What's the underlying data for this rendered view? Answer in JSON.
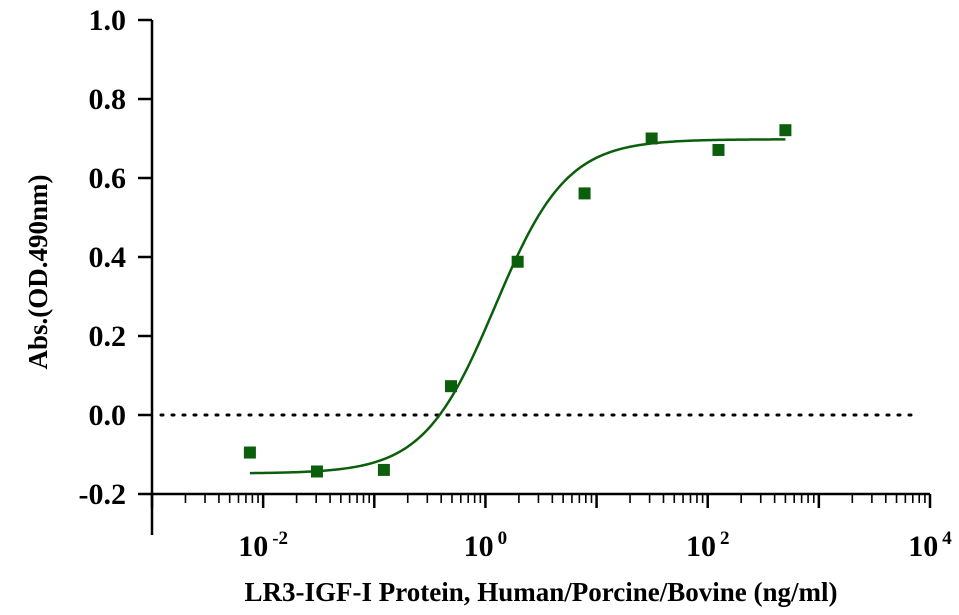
{
  "chart_data": {
    "type": "scatter",
    "xlabel": "LR3-IGF-I Protein, Human/Porcine/Bovine (ng/ml)",
    "ylabel": "Abs.(OD.490nm)",
    "xscale": "log10",
    "xlim": [
      0.001,
      10000
    ],
    "ylim": [
      -0.2,
      1.0
    ],
    "y_ticks": [
      "-0.2",
      "0.0",
      "0.2",
      "0.4",
      "0.6",
      "0.8",
      "1.0"
    ],
    "x_ticks": [
      {
        "value": 0.01,
        "base": "10",
        "exp": "-2"
      },
      {
        "value": 1,
        "base": "10",
        "exp": "0"
      },
      {
        "value": 100,
        "base": "10",
        "exp": "2"
      },
      {
        "value": 10000,
        "base": "10",
        "exp": "4"
      }
    ],
    "reference_line": {
      "y": 0.0,
      "style": "dotted"
    },
    "series": [
      {
        "marker": "square",
        "color": "#0b5e0b",
        "points": [
          {
            "x": 0.0076,
            "y": -0.095
          },
          {
            "x": 0.0305,
            "y": -0.143
          },
          {
            "x": 0.122,
            "y": -0.139
          },
          {
            "x": 0.49,
            "y": 0.073
          },
          {
            "x": 1.95,
            "y": 0.388
          },
          {
            "x": 7.8,
            "y": 0.561
          },
          {
            "x": 31.3,
            "y": 0.7
          },
          {
            "x": 125,
            "y": 0.671
          },
          {
            "x": 500,
            "y": 0.721
          }
        ]
      }
    ],
    "fit": {
      "model": "4PL",
      "bottom": -0.148,
      "top": 0.698,
      "ec50": 1.22,
      "hill": 1.35,
      "x_range": [
        0.0076,
        500
      ],
      "color": "#0b5e0b"
    },
    "grid": false,
    "legend": "none"
  }
}
